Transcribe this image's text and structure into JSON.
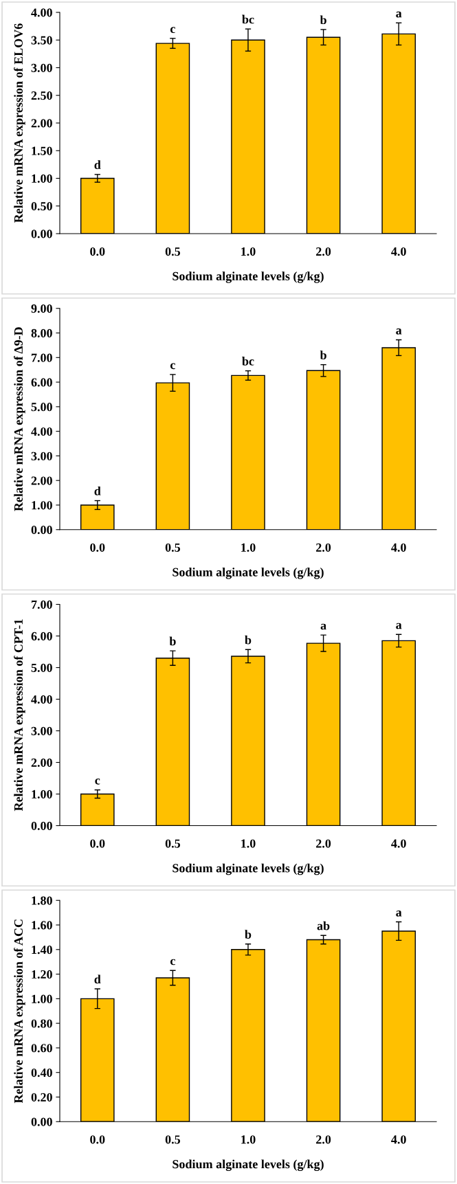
{
  "chart_data": [
    {
      "type": "bar",
      "categories": [
        "0.0",
        "0.5",
        "1.0",
        "2.0",
        "4.0"
      ],
      "values": [
        1.0,
        3.44,
        3.5,
        3.55,
        3.61
      ],
      "errors": [
        0.07,
        0.09,
        0.2,
        0.14,
        0.2
      ],
      "color": "#ffc000",
      "xlabel": "Sodium alginate levels (g/kg)",
      "ylabel": "Relative mRNA expression of ELOV6",
      "ylim": [
        0,
        4
      ],
      "yticks": [
        {
          "value": 0,
          "label": "0.00"
        },
        {
          "value": 0.5,
          "label": "0.50"
        },
        {
          "value": 1,
          "label": "1.00"
        },
        {
          "value": 1.5,
          "label": "1.50"
        },
        {
          "value": 2,
          "label": "2.00"
        },
        {
          "value": 2.5,
          "label": "2.50"
        },
        {
          "value": 3,
          "label": "3.00"
        },
        {
          "value": 3.5,
          "label": "3.50"
        },
        {
          "value": 4,
          "label": "4.00"
        }
      ],
      "grid": false,
      "legend": false,
      "annotations": [
        {
          "text": "d",
          "x": "0.0",
          "y": 1.07
        },
        {
          "text": "c",
          "x": "0.5",
          "y": 3.53
        },
        {
          "text": "bc",
          "x": "1.0",
          "y": 3.7
        },
        {
          "text": "b",
          "x": "2.0",
          "y": 3.69
        },
        {
          "text": "a",
          "x": "4.0",
          "y": 3.81
        }
      ]
    },
    {
      "type": "bar",
      "categories": [
        "0.0",
        "0.5",
        "1.0",
        "2.0",
        "4.0"
      ],
      "values": [
        1.0,
        5.97,
        6.27,
        6.47,
        7.4
      ],
      "errors": [
        0.18,
        0.34,
        0.19,
        0.24,
        0.32
      ],
      "color": "#ffc000",
      "xlabel": "Sodium alginate levels (g/kg)",
      "ylabel": "Relative mRNA expression of Δ9-D",
      "ylim": [
        0,
        9
      ],
      "yticks": [
        {
          "value": 0,
          "label": "0.00"
        },
        {
          "value": 1,
          "label": "1.00"
        },
        {
          "value": 2,
          "label": "2.00"
        },
        {
          "value": 3,
          "label": "3.00"
        },
        {
          "value": 4,
          "label": "4.00"
        },
        {
          "value": 5,
          "label": "5.00"
        },
        {
          "value": 6,
          "label": "6.00"
        },
        {
          "value": 7,
          "label": "7.00"
        },
        {
          "value": 8,
          "label": "8.00"
        },
        {
          "value": 9,
          "label": "9.00"
        }
      ],
      "grid": false,
      "legend": false,
      "annotations": [
        {
          "text": "d",
          "x": "0.0",
          "y": 1.18
        },
        {
          "text": "c",
          "x": "0.5",
          "y": 6.31
        },
        {
          "text": "bc",
          "x": "1.0",
          "y": 6.46
        },
        {
          "text": "b",
          "x": "2.0",
          "y": 6.71
        },
        {
          "text": "a",
          "x": "4.0",
          "y": 7.72
        }
      ]
    },
    {
      "type": "bar",
      "categories": [
        "0.0",
        "0.5",
        "1.0",
        "2.0",
        "4.0"
      ],
      "values": [
        1.0,
        5.3,
        5.36,
        5.77,
        5.85
      ],
      "errors": [
        0.13,
        0.23,
        0.21,
        0.26,
        0.2
      ],
      "color": "#ffc000",
      "xlabel": "Sodium alginate levels (g/kg)",
      "ylabel": "Relative mRNA expression of CPT-1",
      "ylim": [
        0,
        7
      ],
      "yticks": [
        {
          "value": 0,
          "label": "0.00"
        },
        {
          "value": 1,
          "label": "1.00"
        },
        {
          "value": 2,
          "label": "2.00"
        },
        {
          "value": 3,
          "label": "3.00"
        },
        {
          "value": 4,
          "label": "4.00"
        },
        {
          "value": 5,
          "label": "5.00"
        },
        {
          "value": 6,
          "label": "6.00"
        },
        {
          "value": 7,
          "label": "7.00"
        }
      ],
      "grid": false,
      "legend": false,
      "annotations": [
        {
          "text": "c",
          "x": "0.0",
          "y": 1.13
        },
        {
          "text": "b",
          "x": "0.5",
          "y": 5.53
        },
        {
          "text": "b",
          "x": "1.0",
          "y": 5.57
        },
        {
          "text": "a",
          "x": "2.0",
          "y": 6.03
        },
        {
          "text": "a",
          "x": "4.0",
          "y": 6.05
        }
      ]
    },
    {
      "type": "bar",
      "categories": [
        "0.0",
        "0.5",
        "1.0",
        "2.0",
        "4.0"
      ],
      "values": [
        1.0,
        1.17,
        1.4,
        1.48,
        1.55
      ],
      "errors": [
        0.08,
        0.06,
        0.045,
        0.035,
        0.075
      ],
      "color": "#ffc000",
      "xlabel": "Sodium alginate levels (g/kg)",
      "ylabel": "Relative mRNA expression of ACC",
      "ylim": [
        0,
        1.8
      ],
      "yticks": [
        {
          "value": 0,
          "label": "0.00"
        },
        {
          "value": 0.2,
          "label": "0.20"
        },
        {
          "value": 0.4,
          "label": "0.40"
        },
        {
          "value": 0.6,
          "label": "0.60"
        },
        {
          "value": 0.8,
          "label": "0.80"
        },
        {
          "value": 1,
          "label": "1.00"
        },
        {
          "value": 1.2,
          "label": "1.20"
        },
        {
          "value": 1.4,
          "label": "1.40"
        },
        {
          "value": 1.6,
          "label": "1.60"
        },
        {
          "value": 1.8,
          "label": "1.80"
        }
      ],
      "grid": false,
      "legend": false,
      "annotations": [
        {
          "text": "d",
          "x": "0.0",
          "y": 1.08
        },
        {
          "text": "c",
          "x": "0.5",
          "y": 1.23
        },
        {
          "text": "b",
          "x": "1.0",
          "y": 1.445
        },
        {
          "text": "ab",
          "x": "2.0",
          "y": 1.515
        },
        {
          "text": "a",
          "x": "4.0",
          "y": 1.625
        }
      ]
    }
  ]
}
